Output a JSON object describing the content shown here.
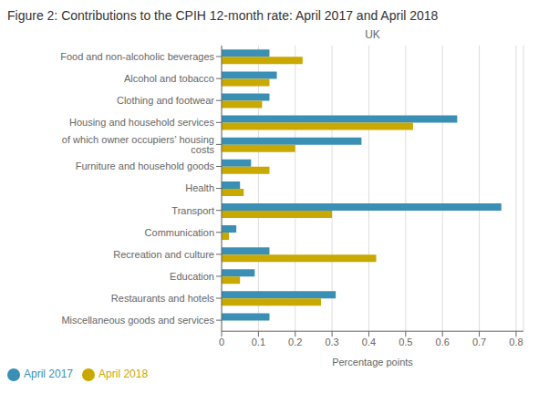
{
  "chart_data": {
    "type": "bar",
    "title": "Figure 2: Contributions to the CPIH 12-month rate: April 2017 and April 2018",
    "subtitle": "UK",
    "xlabel": "Percentage points",
    "orientation": "horizontal",
    "categories": [
      "Food and non-alcoholic beverages",
      "Alcohol and tobacco",
      "Clothing and footwear",
      "Housing and household services",
      "of which owner occupiers’ housing costs",
      "Furniture and household goods",
      "Health",
      "Transport",
      "Communication",
      "Recreation and culture",
      "Education",
      "Restaurants and hotels",
      "Miscellaneous goods and services"
    ],
    "series": [
      {
        "name": "April 2017",
        "color": "#3A8FB5",
        "values": [
          0.13,
          0.15,
          0.13,
          0.64,
          0.38,
          0.08,
          0.05,
          0.76,
          0.04,
          0.13,
          0.09,
          0.31,
          0.13
        ]
      },
      {
        "name": "April 2018",
        "color": "#C9A800",
        "values": [
          0.22,
          0.13,
          0.11,
          0.52,
          0.2,
          0.13,
          0.06,
          0.3,
          0.02,
          0.42,
          0.05,
          0.27,
          0.0
        ]
      }
    ],
    "xlim": [
      0,
      0.82
    ],
    "xticks": [
      0,
      0.1,
      0.2,
      0.3,
      0.4,
      0.5,
      0.6,
      0.7,
      0.8
    ],
    "grid": true,
    "legend": "lower left"
  }
}
